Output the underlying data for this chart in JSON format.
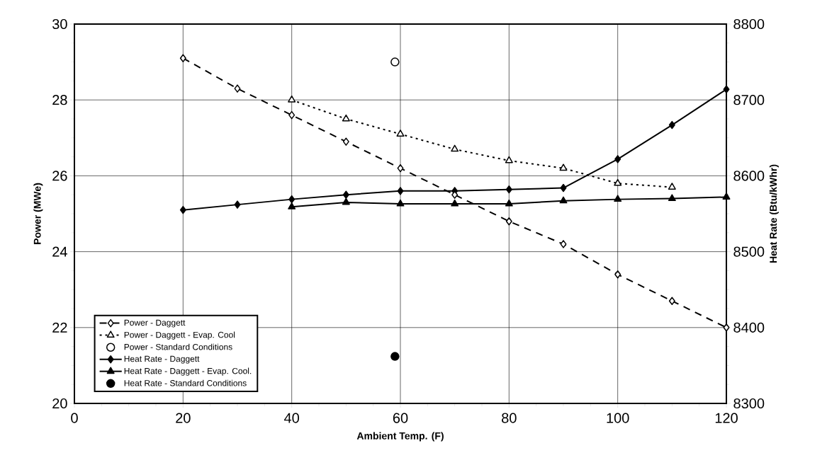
{
  "chart_data": {
    "type": "line",
    "xlabel": "Ambient Temp. (F)",
    "ylabel": "Power (MWe)",
    "y2label": "Heat Rate (Btu/kWhr)",
    "xlim": [
      0,
      120
    ],
    "xticks": [
      0,
      20,
      40,
      60,
      80,
      100,
      120
    ],
    "ylim": [
      20,
      30
    ],
    "yticks": [
      20,
      22,
      24,
      26,
      28,
      30
    ],
    "y2lim": [
      8300,
      8800
    ],
    "y2ticks": [
      8300,
      8400,
      8500,
      8600,
      8700,
      8800
    ],
    "grid": true,
    "legend": "bottom left",
    "series": [
      {
        "name": "Power - Daggett",
        "color": "#000000",
        "marker": "diamond",
        "line_style": "dashed",
        "x": [
          20,
          30,
          40,
          50,
          60,
          70,
          80,
          90,
          100,
          110,
          120
        ],
        "values": [
          29.1,
          28.3,
          27.6,
          26.9,
          26.2,
          25.5,
          24.8,
          24.2,
          23.4,
          22.7,
          22.0
        ]
      },
      {
        "name": "Power - Daggett - Evap. Cool",
        "color": "#000000",
        "marker": "triangle",
        "line_style": "dotted",
        "x": [
          40,
          50,
          60,
          70,
          80,
          90,
          100,
          110
        ],
        "values": [
          28.0,
          27.5,
          27.1,
          26.7,
          26.4,
          26.2,
          25.8,
          25.7
        ]
      },
      {
        "name": "Power - Standard Conditions",
        "type": "scatter",
        "color": "#000000",
        "marker": "circle",
        "x": [
          59
        ],
        "values": [
          29.0
        ]
      },
      {
        "name": "Heat Rate - Daggett",
        "axis": "y2",
        "color": "#000000",
        "marker": "diamond",
        "line_style": "solid",
        "x": [
          20,
          30,
          40,
          50,
          60,
          70,
          80,
          90,
          100,
          110,
          120
        ],
        "values": [
          8555,
          8562,
          8569,
          8575,
          8580,
          8580,
          8582,
          8584,
          8622,
          8667,
          8714
        ]
      },
      {
        "name": "Heat Rate - Daggett - Evap. Cool.",
        "axis": "y2",
        "color": "#000000",
        "marker": "triangle",
        "line_style": "solid",
        "x": [
          40,
          50,
          60,
          70,
          80,
          90,
          100,
          110,
          120
        ],
        "values": [
          8559,
          8565,
          8563,
          8563,
          8563,
          8567,
          8569,
          8570,
          8572
        ]
      },
      {
        "name": "Heat Rate - Standard Conditions",
        "axis": "y2",
        "type": "scatter",
        "color": "#000000",
        "marker": "circle",
        "x": [
          59
        ],
        "values": [
          8362
        ]
      }
    ]
  }
}
